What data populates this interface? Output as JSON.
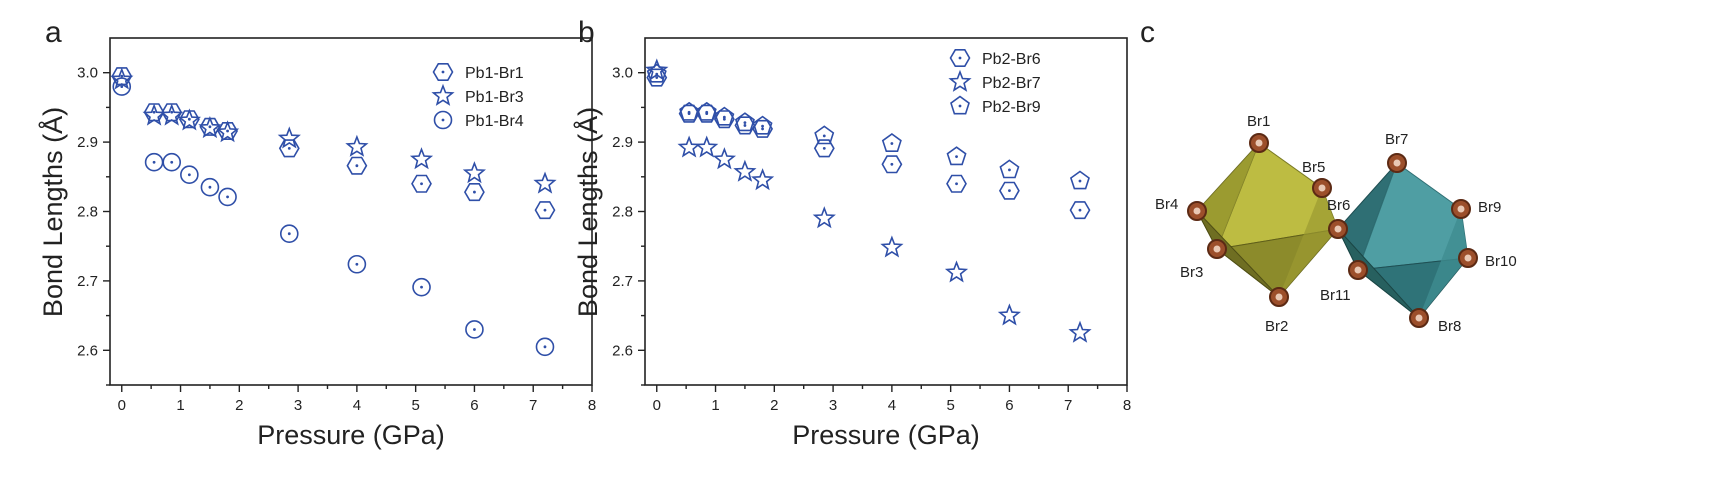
{
  "chart_data": [
    {
      "type": "scatter",
      "panel_label": "a",
      "xlabel": "Pressure (GPa)",
      "ylabel": "Bond Lengths (Å)",
      "xlim": [
        -0.2,
        8
      ],
      "ylim": [
        2.55,
        3.05
      ],
      "xticks": [
        0,
        1,
        2,
        3,
        4,
        5,
        6,
        7,
        8
      ],
      "yticks": [
        2.6,
        2.7,
        2.8,
        2.9,
        3.0
      ],
      "xtick_labels": [
        "0",
        "1",
        "2",
        "3",
        "4",
        "5",
        "6",
        "7",
        "8"
      ],
      "ytick_labels": [
        "2.6",
        "2.7",
        "2.8",
        "2.9",
        "3.0"
      ],
      "legend_position": "top-right",
      "series": [
        {
          "name": "Pb1-Br1",
          "marker": "hexagon",
          "x": [
            0,
            0.55,
            0.85,
            1.15,
            1.5,
            1.8,
            2.85,
            4.0,
            5.1,
            6.0,
            7.2
          ],
          "y": [
            2.995,
            2.943,
            2.943,
            2.933,
            2.922,
            2.916,
            2.891,
            2.866,
            2.84,
            2.828,
            2.802
          ]
        },
        {
          "name": "Pb1-Br3",
          "marker": "star",
          "x": [
            0,
            0.55,
            0.85,
            1.15,
            1.5,
            1.8,
            2.85,
            4.0,
            5.1,
            6.0,
            7.2
          ],
          "y": [
            2.99,
            2.938,
            2.938,
            2.931,
            2.92,
            2.914,
            2.905,
            2.893,
            2.875,
            2.855,
            2.84
          ]
        },
        {
          "name": "Pb1-Br4",
          "marker": "circle",
          "x": [
            0,
            0.55,
            0.85,
            1.15,
            1.5,
            1.8,
            2.85,
            4.0,
            5.1,
            6.0,
            7.2
          ],
          "y": [
            2.98,
            2.871,
            2.871,
            2.853,
            2.835,
            2.821,
            2.768,
            2.724,
            2.691,
            2.63,
            2.605
          ]
        }
      ]
    },
    {
      "type": "scatter",
      "panel_label": "b",
      "xlabel": "Pressure (GPa)",
      "ylabel": "Bond Lengths (Å)",
      "xlim": [
        -0.2,
        8
      ],
      "ylim": [
        2.55,
        3.05
      ],
      "xticks": [
        0,
        1,
        2,
        3,
        4,
        5,
        6,
        7,
        8
      ],
      "yticks": [
        2.6,
        2.7,
        2.8,
        2.9,
        3.0
      ],
      "xtick_labels": [
        "0",
        "1",
        "2",
        "3",
        "4",
        "5",
        "6",
        "7",
        "8"
      ],
      "ytick_labels": [
        "2.6",
        "2.7",
        "2.8",
        "2.9",
        "3.0"
      ],
      "legend_position": "top-right",
      "series": [
        {
          "name": "Pb2-Br6",
          "marker": "hexagon",
          "x": [
            0,
            0.55,
            0.85,
            1.15,
            1.5,
            1.8,
            2.85,
            4.0,
            5.1,
            6.0,
            7.2
          ],
          "y": [
            2.993,
            2.941,
            2.941,
            2.933,
            2.924,
            2.919,
            2.891,
            2.868,
            2.84,
            2.83,
            2.802
          ]
        },
        {
          "name": "Pb2-Br7",
          "marker": "star",
          "x": [
            0,
            0.55,
            0.85,
            1.15,
            1.5,
            1.8,
            2.85,
            4.0,
            5.1,
            6.0,
            7.2
          ],
          "y": [
            3.003,
            2.892,
            2.892,
            2.875,
            2.857,
            2.845,
            2.79,
            2.748,
            2.712,
            2.65,
            2.625
          ]
        },
        {
          "name": "Pb2-Br9",
          "marker": "pentagon",
          "x": [
            0,
            0.55,
            0.85,
            1.15,
            1.5,
            1.8,
            2.85,
            4.0,
            5.1,
            6.0,
            7.2
          ],
          "y": [
            2.998,
            2.943,
            2.943,
            2.936,
            2.928,
            2.923,
            2.909,
            2.898,
            2.879,
            2.86,
            2.844
          ]
        }
      ]
    }
  ],
  "panel_c": {
    "label": "c",
    "octahedron_1_color": "#b5b43a",
    "octahedron_2_color": "#3f8e93",
    "atom_color": "#a0522d",
    "atom_labels": [
      "Br1",
      "Br5",
      "Br4",
      "Br6",
      "Br3",
      "Br2",
      "Br7",
      "Br9",
      "Br10",
      "Br11",
      "Br8"
    ]
  }
}
